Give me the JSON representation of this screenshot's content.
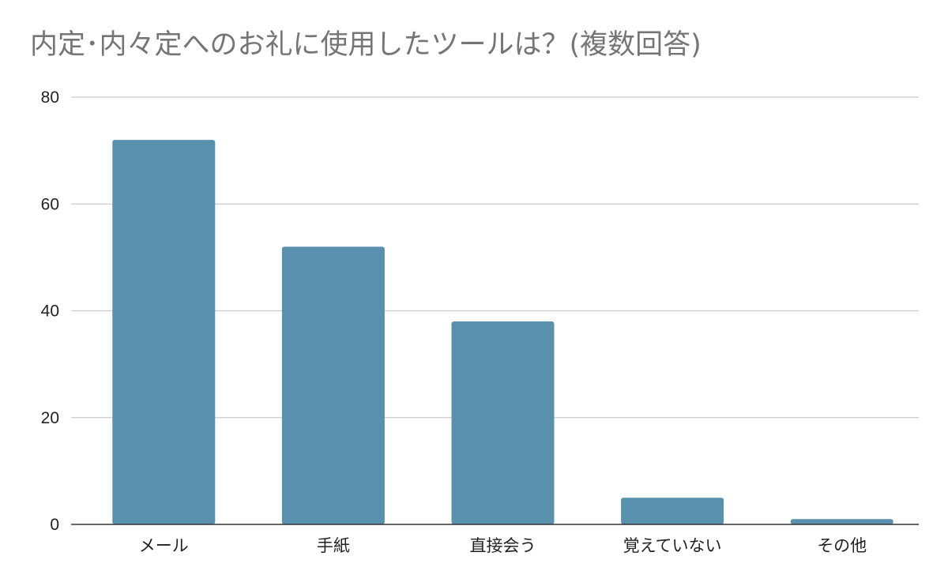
{
  "chart_data": {
    "type": "bar",
    "title": "内定･内々定へのお礼に使用したツールは？(複数回答)",
    "xlabel": "",
    "ylabel": "",
    "categories": [
      "メール",
      "手紙",
      "直接会う",
      "覚えていない",
      "その他"
    ],
    "values": [
      72,
      52,
      38,
      5,
      1
    ],
    "ylim": [
      0,
      80
    ],
    "yticks": [
      0,
      20,
      40,
      60,
      80
    ],
    "grid": true,
    "legend": "none",
    "bar_color": "#5990ae"
  }
}
